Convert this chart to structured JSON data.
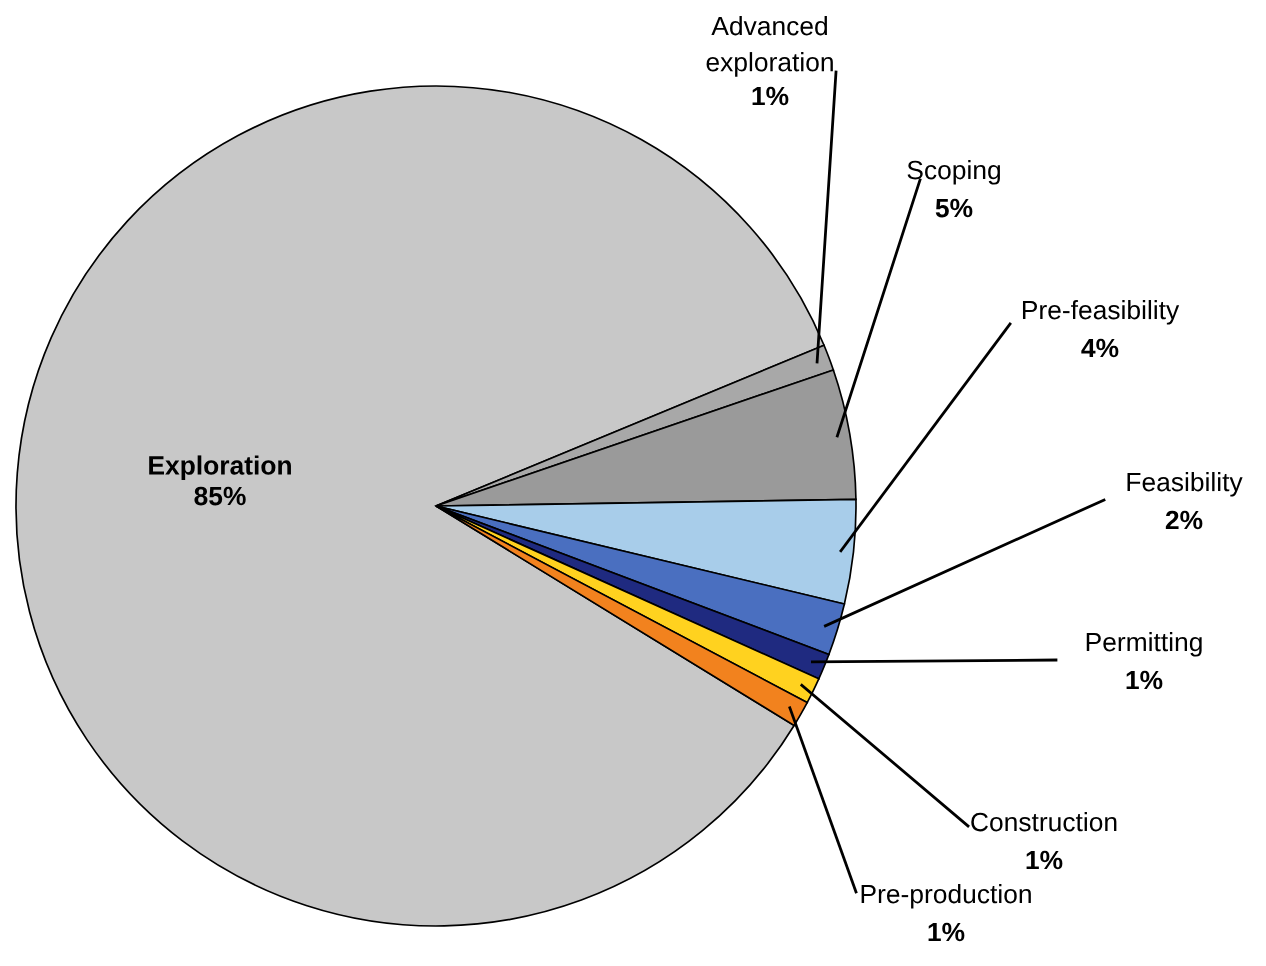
{
  "chart_data": {
    "type": "pie",
    "categories": [
      "Exploration",
      "Advanced exploration",
      "Scoping",
      "Pre-feasibility",
      "Feasibility",
      "Permitting",
      "Construction",
      "Pre-production"
    ],
    "values": [
      85,
      1,
      5,
      4,
      2,
      1,
      1,
      1
    ],
    "value_labels": [
      "85%",
      "1%",
      "5%",
      "4%",
      "2%",
      "1%",
      "1%",
      "1%"
    ],
    "colors": [
      "#c8c8c8",
      "#a8a8a8",
      "#9a9a9a",
      "#a8cdea",
      "#4a6fc0",
      "#1f2a80",
      "#ffd21f",
      "#f2821e"
    ]
  }
}
